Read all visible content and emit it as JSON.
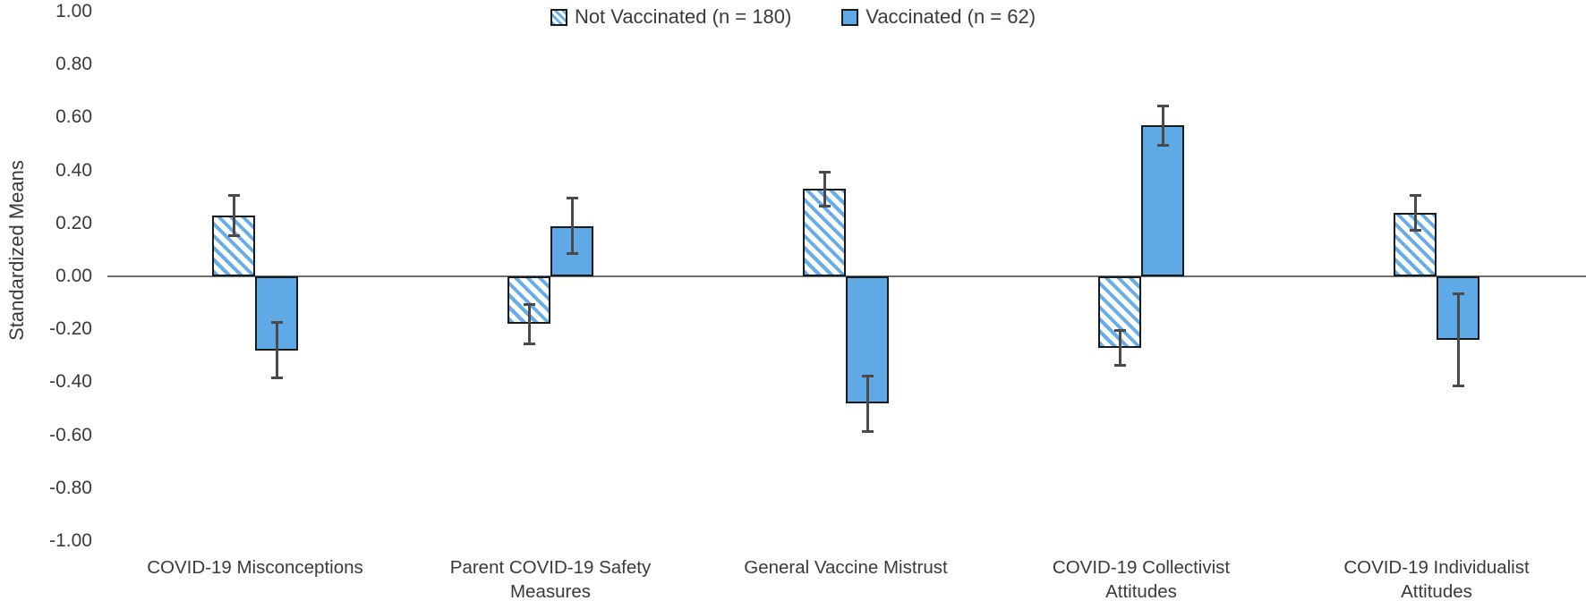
{
  "colors": {
    "bar_blue": "#5FA9E7",
    "hatch_blue": "#66ADEA",
    "bar_border": "#1a1a1a",
    "error_bar": "#4a4a4a",
    "axis_line": "#6e6e6e",
    "text": "#3a3a3a"
  },
  "chart_data": {
    "type": "bar",
    "title": "",
    "ylabel": "Standardized Means",
    "xlabel": "",
    "ylim": [
      -1.0,
      1.0
    ],
    "ytick_interval": 0.2,
    "yticks": [
      "1.00",
      "0.80",
      "0.60",
      "0.40",
      "0.20",
      "0.00",
      "-0.20",
      "-0.40",
      "-0.60",
      "-0.80",
      "-1.00"
    ],
    "grid": false,
    "legend_position": "top-center",
    "error_bars": true,
    "categories": [
      "COVID-19 Misconceptions",
      "Parent COVID-19 Safety Measures",
      "General Vaccine Mistrust",
      "COVID-19 Collectivist Attitudes",
      "COVID-19 Individualist Attitudes"
    ],
    "series": [
      {
        "name": "Not Vaccinated (n = 180)",
        "style": "hatched",
        "values": [
          0.23,
          -0.18,
          0.33,
          -0.27,
          0.24
        ],
        "errors": [
          0.08,
          0.08,
          0.07,
          0.07,
          0.07
        ]
      },
      {
        "name": "Vaccinated (n = 62)",
        "style": "solid",
        "values": [
          -0.28,
          0.19,
          -0.48,
          0.57,
          -0.24
        ],
        "errors": [
          0.11,
          0.11,
          0.11,
          0.08,
          0.18
        ]
      }
    ]
  }
}
